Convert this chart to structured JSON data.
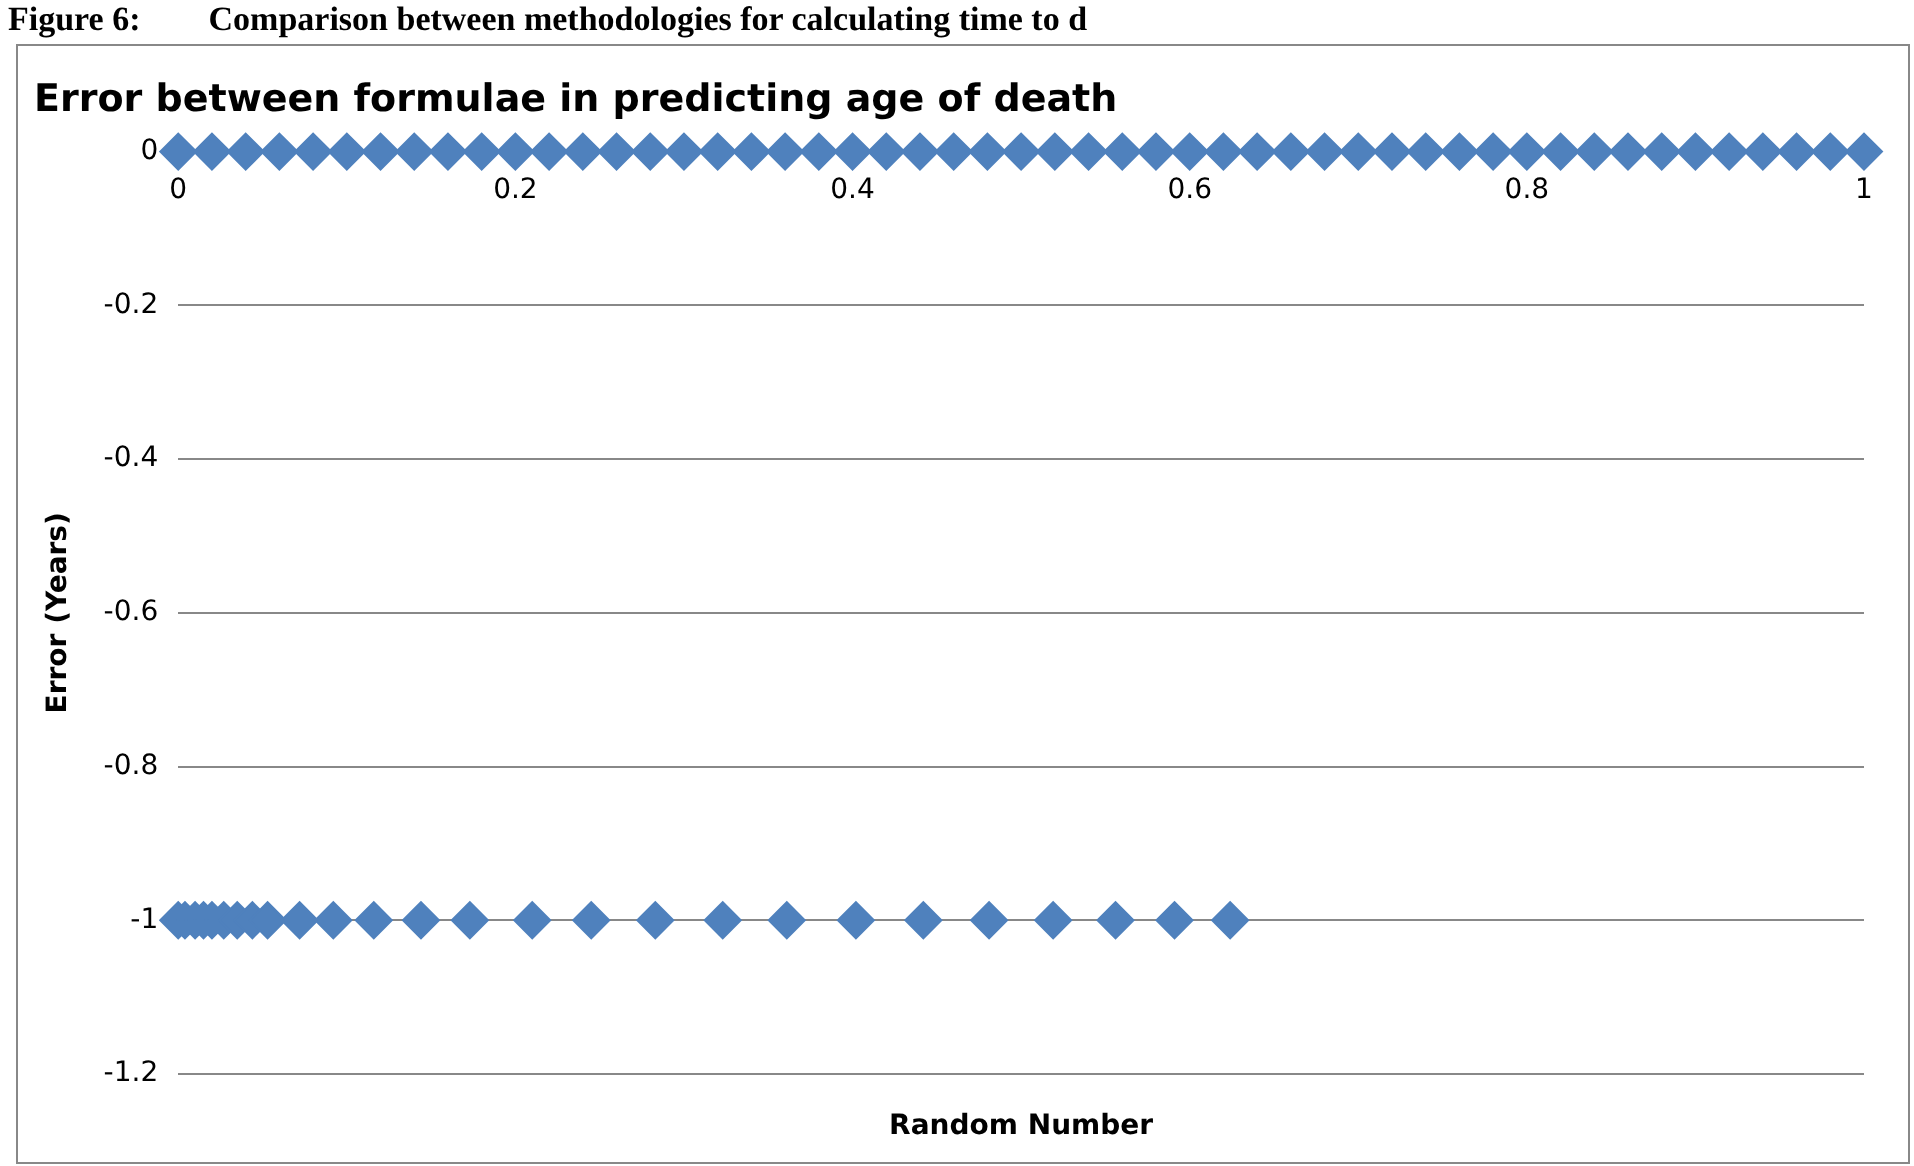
{
  "chart_data": {
    "type": "scatter",
    "title": "Error between formulae in predicting age of death",
    "xlabel": "Random Number",
    "ylabel": "Error (Years)",
    "annotations": [
      "Figure 6:  Comparison between methodologies for calculating time to d"
    ],
    "series": [
      {
        "color": "#4f81bd",
        "x": [
          0,
          0.02,
          0.04,
          0.06,
          0.08,
          0.1,
          0.12,
          0.14,
          0.16,
          0.18,
          0.2,
          0.22,
          0.24,
          0.26,
          0.28,
          0.3,
          0.32,
          0.34,
          0.36,
          0.38,
          0.4,
          0.42,
          0.44,
          0.46,
          0.48,
          0.5,
          0.52,
          0.54,
          0.56,
          0.58,
          0.6,
          0.62,
          0.64,
          0.66,
          0.68,
          0.7,
          0.72,
          0.74,
          0.76,
          0.78,
          0.8,
          0.82,
          0.84,
          0.86,
          0.88,
          0.9,
          0.92,
          0.94,
          0.96,
          0.98,
          1,
          0,
          0.004,
          0.01,
          0.015,
          0.02,
          0.027,
          0.035,
          0.044,
          0.053,
          0.072,
          0.092,
          0.116,
          0.144,
          0.173,
          0.21,
          0.245,
          0.283,
          0.323,
          0.361,
          0.402,
          0.442,
          0.481,
          0.519,
          0.556,
          0.591,
          0.624
        ],
        "values": [
          0,
          0,
          0,
          0,
          0,
          0,
          0,
          0,
          0,
          0,
          0,
          0,
          0,
          0,
          0,
          0,
          0,
          0,
          0,
          0,
          0,
          0,
          0,
          0,
          0,
          0,
          0,
          0,
          0,
          0,
          0,
          0,
          0,
          0,
          0,
          0,
          0,
          0,
          0,
          0,
          0,
          0,
          0,
          0,
          0,
          0,
          0,
          0,
          0,
          0,
          0,
          -1,
          -1,
          -1,
          -1,
          -1,
          -1,
          -1,
          -1,
          -1,
          -1,
          -1,
          -1,
          -1,
          -1,
          -1,
          -1,
          -1,
          -1,
          -1,
          -1,
          -1,
          -1,
          -1,
          -1,
          -1,
          -1
        ]
      }
    ],
    "xlim": [
      0,
      1
    ],
    "xticks": [
      0,
      0.2,
      0.4,
      0.6,
      0.8,
      1
    ],
    "ylim": [
      -1.2,
      0
    ],
    "yticks": [
      0,
      -0.2,
      -0.4,
      -0.6,
      -0.8,
      -1,
      -1.2
    ],
    "grid": "y",
    "legend": false,
    "marker": "diamond"
  }
}
